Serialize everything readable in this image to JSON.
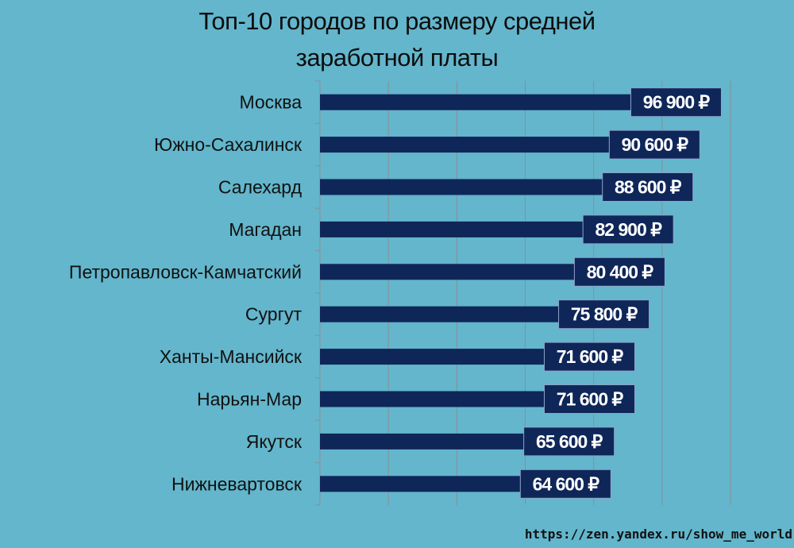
{
  "chart_data": {
    "type": "bar",
    "orientation": "horizontal",
    "title_lines": [
      "Топ-10 городов по размеру средней",
      "заработной платы"
    ],
    "categories": [
      "Москва",
      "Южно-Сахалинск",
      "Салехард",
      "Магадан",
      "Петропавловск-Камчатский",
      "Сургут",
      "Ханты-Мансийск",
      "Нарьян-Мар",
      "Якутск",
      "Нижневартовск"
    ],
    "values": [
      96900,
      90600,
      88600,
      82900,
      80400,
      75800,
      71600,
      71600,
      65600,
      64600
    ],
    "value_labels": [
      "96 900 ₽",
      "90 600 ₽",
      "88 600 ₽",
      "82 900 ₽",
      "80 400 ₽",
      "75 800 ₽",
      "71 600 ₽",
      "71 600 ₽",
      "65 600 ₽",
      "64 600 ₽"
    ],
    "xlim": [
      0,
      120000
    ],
    "grid": true,
    "colors": {
      "bar": "#0f2659",
      "label_box": "#0f2659",
      "label_border": "#8fa3c8",
      "background": "#63b6cc",
      "grid": "#8a8f96"
    }
  },
  "source": "https://zen.yandex.ru/show_me_world"
}
